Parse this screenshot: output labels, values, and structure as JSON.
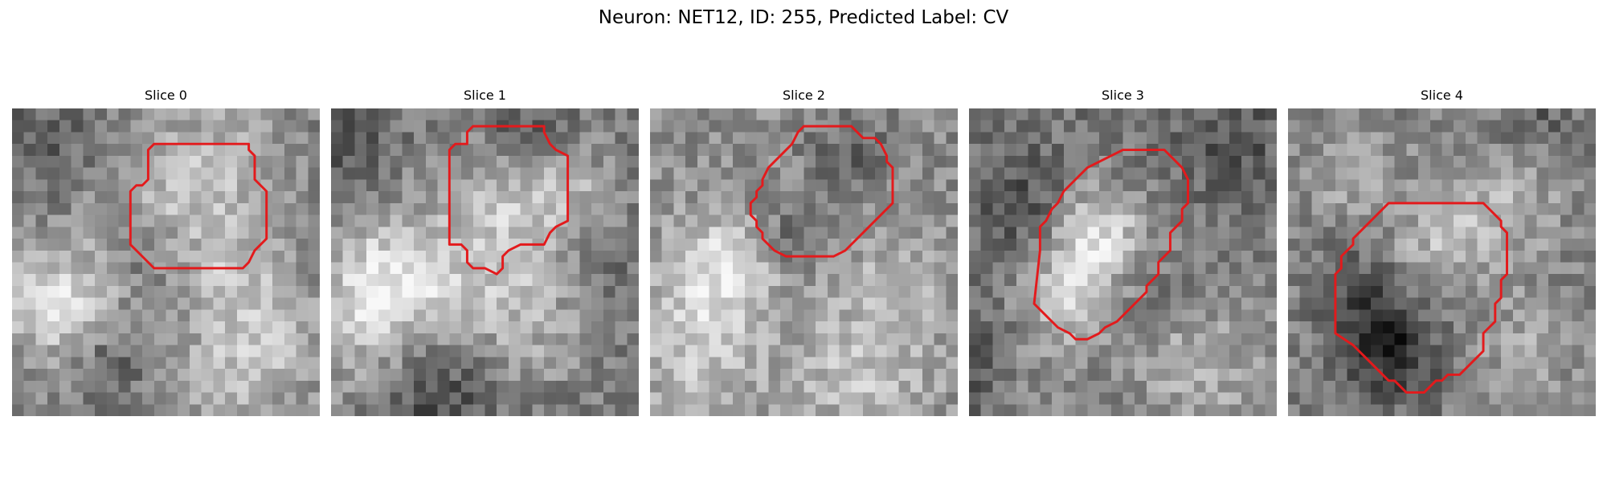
{
  "figure": {
    "title": "Neuron: NET12, ID: 255, Predicted Label: CV",
    "contour_color": "#e31a1c",
    "colormap": "grayscale",
    "grid_cells": 26,
    "seed": 255
  },
  "panels": [
    {
      "title": "Slice 0",
      "base": 128,
      "blobs": [
        [
          4.5,
          16.5,
          3.8,
          88
        ],
        [
          15.5,
          6.5,
          5.5,
          62
        ],
        [
          19,
          15,
          3.2,
          40
        ],
        [
          22,
          20,
          3.6,
          55
        ],
        [
          17,
          23,
          3.2,
          38
        ]
      ],
      "dark": [
        [
          8,
          21.5,
          2.2,
          50
        ],
        [
          11,
          14,
          2.5,
          35
        ],
        [
          3,
          3,
          3.5,
          35
        ]
      ],
      "contour": [
        [
          12,
          3
        ],
        [
          20,
          3
        ],
        [
          20,
          3.5
        ],
        [
          20.5,
          4
        ],
        [
          20.5,
          6
        ],
        [
          21,
          6.5
        ],
        [
          21.5,
          7
        ],
        [
          21.5,
          11
        ],
        [
          21,
          11.5
        ],
        [
          20.5,
          12
        ],
        [
          20,
          13
        ],
        [
          19.5,
          13.5
        ],
        [
          12,
          13.5
        ],
        [
          11.5,
          13
        ],
        [
          11,
          12.5
        ],
        [
          10.5,
          12
        ],
        [
          10,
          11.5
        ],
        [
          10,
          7
        ],
        [
          10.5,
          6.5
        ],
        [
          11,
          6.5
        ],
        [
          11.5,
          6
        ],
        [
          11.5,
          3.5
        ]
      ]
    },
    {
      "title": "Slice 1",
      "base": 115,
      "blobs": [
        [
          4.5,
          15,
          4,
          120
        ],
        [
          14.5,
          7,
          4.5,
          60
        ],
        [
          16,
          16,
          5.2,
          75
        ],
        [
          3,
          23,
          3.5,
          45
        ],
        [
          21,
          7,
          3,
          40
        ]
      ],
      "dark": [
        [
          8,
          24,
          4,
          60
        ],
        [
          16,
          2,
          3,
          45
        ],
        [
          21,
          13,
          3,
          40
        ],
        [
          1,
          3,
          2.5,
          30
        ]
      ],
      "contour": [
        [
          12,
          1.5
        ],
        [
          18,
          1.5
        ],
        [
          18,
          2
        ],
        [
          18.5,
          3
        ],
        [
          19,
          3.5
        ],
        [
          20,
          4
        ],
        [
          20,
          9
        ],
        [
          20,
          9.5
        ],
        [
          19,
          10
        ],
        [
          18.5,
          10.5
        ],
        [
          18,
          11.5
        ],
        [
          17,
          11.5
        ],
        [
          16,
          11.5
        ],
        [
          15,
          12
        ],
        [
          14.5,
          12.5
        ],
        [
          14.5,
          13.5
        ],
        [
          14,
          14
        ],
        [
          13,
          13.5
        ],
        [
          12,
          13.5
        ],
        [
          11.5,
          13
        ],
        [
          11.5,
          12
        ],
        [
          11,
          11.5
        ],
        [
          10,
          11.5
        ],
        [
          10,
          3.5
        ],
        [
          10.5,
          3
        ],
        [
          11.5,
          3
        ],
        [
          11.5,
          2
        ]
      ]
    },
    {
      "title": "Slice 2",
      "base": 140,
      "blobs": [
        [
          6.5,
          14.5,
          3.8,
          95
        ],
        [
          4,
          22,
          4,
          45
        ],
        [
          18,
          22,
          4.5,
          55
        ],
        [
          21,
          14,
          3,
          35
        ]
      ],
      "dark": [
        [
          12,
          11,
          2,
          55
        ],
        [
          17,
          4,
          2.5,
          40
        ],
        [
          10,
          17,
          3,
          30
        ]
      ],
      "contour": [
        [
          13,
          1.5
        ],
        [
          17,
          1.5
        ],
        [
          18,
          2.5
        ],
        [
          19,
          2.5
        ],
        [
          19.5,
          3
        ],
        [
          20,
          4
        ],
        [
          20,
          4.5
        ],
        [
          20.5,
          5
        ],
        [
          20.5,
          8
        ],
        [
          19.5,
          9
        ],
        [
          18.5,
          10
        ],
        [
          17.5,
          11
        ],
        [
          16.5,
          12
        ],
        [
          15.5,
          12.5
        ],
        [
          14.5,
          12.5
        ],
        [
          11.5,
          12.5
        ],
        [
          10.5,
          12
        ],
        [
          9.5,
          11
        ],
        [
          9.5,
          10.5
        ],
        [
          9,
          10
        ],
        [
          9,
          9.5
        ],
        [
          8.5,
          9
        ],
        [
          8.5,
          8
        ],
        [
          9,
          7.5
        ],
        [
          9,
          7
        ],
        [
          9.5,
          6.5
        ],
        [
          9.5,
          6
        ],
        [
          10,
          5
        ],
        [
          10.5,
          4.5
        ],
        [
          11,
          4
        ],
        [
          12,
          3
        ],
        [
          12.5,
          2
        ]
      ]
    },
    {
      "title": "Slice 3",
      "base": 118,
      "blobs": [
        [
          11,
          11,
          3,
          105
        ],
        [
          9,
          16,
          2.8,
          70
        ],
        [
          20,
          22,
          5,
          55
        ],
        [
          4,
          21,
          3.5,
          45
        ]
      ],
      "dark": [
        [
          1,
          21,
          3,
          60
        ],
        [
          4,
          8,
          3,
          40
        ],
        [
          22,
          3,
          3,
          40
        ],
        [
          14,
          14.5,
          2.5,
          35
        ]
      ],
      "contour": [
        [
          12,
          4
        ],
        [
          13,
          3.5
        ],
        [
          16.5,
          3.5
        ],
        [
          17,
          4
        ],
        [
          18,
          5
        ],
        [
          18.5,
          6
        ],
        [
          18.5,
          8
        ],
        [
          18,
          8.5
        ],
        [
          18,
          9.5
        ],
        [
          17.5,
          10
        ],
        [
          17,
          10.5
        ],
        [
          17,
          12
        ],
        [
          16.5,
          12.5
        ],
        [
          16,
          13
        ],
        [
          16,
          14
        ],
        [
          15.5,
          14.5
        ],
        [
          15,
          15
        ],
        [
          15,
          15.5
        ],
        [
          14.5,
          16
        ],
        [
          14,
          16.5
        ],
        [
          13,
          17.5
        ],
        [
          12.5,
          18
        ],
        [
          11.5,
          18.5
        ],
        [
          11,
          19
        ],
        [
          10,
          19.5
        ],
        [
          9,
          19.5
        ],
        [
          8.5,
          19
        ],
        [
          7.5,
          18.5
        ],
        [
          6.5,
          17.5
        ],
        [
          5.5,
          16.5
        ],
        [
          6,
          12
        ],
        [
          6,
          10
        ],
        [
          6.5,
          9.5
        ],
        [
          7,
          8.5
        ],
        [
          7.5,
          8
        ],
        [
          8,
          7
        ],
        [
          9,
          6
        ],
        [
          10,
          5
        ],
        [
          11,
          4.5
        ]
      ]
    },
    {
      "title": "Slice 4",
      "base": 130,
      "blobs": [
        [
          13,
          11,
          3,
          55
        ],
        [
          19,
          8,
          3,
          45
        ],
        [
          5,
          5,
          3,
          35
        ],
        [
          20,
          20,
          3.5,
          35
        ]
      ],
      "dark": [
        [
          8,
          19,
          3,
          70
        ],
        [
          9.5,
          22,
          2.5,
          45
        ],
        [
          6,
          15,
          2.5,
          35
        ],
        [
          21,
          1,
          2,
          35
        ]
      ],
      "contour": [
        [
          8.5,
          8
        ],
        [
          16.5,
          8
        ],
        [
          17,
          8.5
        ],
        [
          17.5,
          9
        ],
        [
          18,
          9.5
        ],
        [
          18,
          10
        ],
        [
          18.5,
          10.5
        ],
        [
          18.5,
          14
        ],
        [
          18,
          14.5
        ],
        [
          18,
          16
        ],
        [
          17.5,
          16.5
        ],
        [
          17.5,
          18
        ],
        [
          17,
          18.5
        ],
        [
          16.5,
          19
        ],
        [
          16.5,
          20.5
        ],
        [
          16,
          21
        ],
        [
          15.5,
          21.5
        ],
        [
          15,
          22
        ],
        [
          14.5,
          22.5
        ],
        [
          13.5,
          22.5
        ],
        [
          13,
          23
        ],
        [
          12.5,
          23
        ],
        [
          12,
          23.5
        ],
        [
          11.5,
          24
        ],
        [
          10,
          24
        ],
        [
          9.5,
          23.5
        ],
        [
          9,
          23
        ],
        [
          8.5,
          23
        ],
        [
          8,
          22.5
        ],
        [
          7.5,
          22
        ],
        [
          7,
          21.5
        ],
        [
          6.5,
          21
        ],
        [
          6,
          20.5
        ],
        [
          5.5,
          20
        ],
        [
          4,
          19
        ],
        [
          4,
          14
        ],
        [
          4.5,
          13.5
        ],
        [
          4.5,
          12.5
        ],
        [
          5.5,
          11.5
        ],
        [
          5.5,
          11
        ],
        [
          6,
          10.5
        ],
        [
          6.5,
          10
        ],
        [
          7,
          9.5
        ],
        [
          7.5,
          9
        ],
        [
          8,
          8.5
        ]
      ]
    }
  ]
}
